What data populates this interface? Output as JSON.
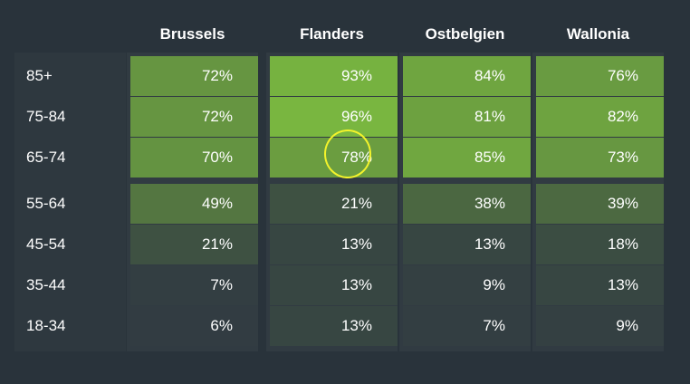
{
  "chart_data": {
    "type": "heatmap",
    "columns": [
      "Brussels",
      "Flanders",
      "Ostbelgien",
      "Wallonia"
    ],
    "rows": [
      "85+",
      "75-84",
      "65-74",
      "55-64",
      "45-54",
      "35-44",
      "18-34"
    ],
    "values": [
      [
        72,
        93,
        84,
        76
      ],
      [
        72,
        96,
        81,
        82
      ],
      [
        70,
        78,
        85,
        73
      ],
      [
        49,
        21,
        38,
        39
      ],
      [
        21,
        13,
        13,
        18
      ],
      [
        7,
        13,
        9,
        13
      ],
      [
        6,
        13,
        7,
        9
      ]
    ],
    "labels": [
      [
        "72%",
        "93%",
        "84%",
        "76%"
      ],
      [
        "72%",
        "96%",
        "81%",
        "82%"
      ],
      [
        "70%",
        "78%",
        "85%",
        "73%"
      ],
      [
        "49%",
        "21%",
        "38%",
        "39%"
      ],
      [
        "21%",
        "13%",
        "13%",
        "18%"
      ],
      [
        "7%",
        "13%",
        "9%",
        "13%"
      ],
      [
        "6%",
        "13%",
        "7%",
        "9%"
      ]
    ],
    "highlighted_cell": {
      "row": "65-74",
      "column": "Flanders"
    },
    "colors": {
      "background": "#29333b",
      "low": "#313b42",
      "high": "#7cbb40",
      "highlight": "#f3f32b",
      "text": "#ffffff"
    }
  }
}
